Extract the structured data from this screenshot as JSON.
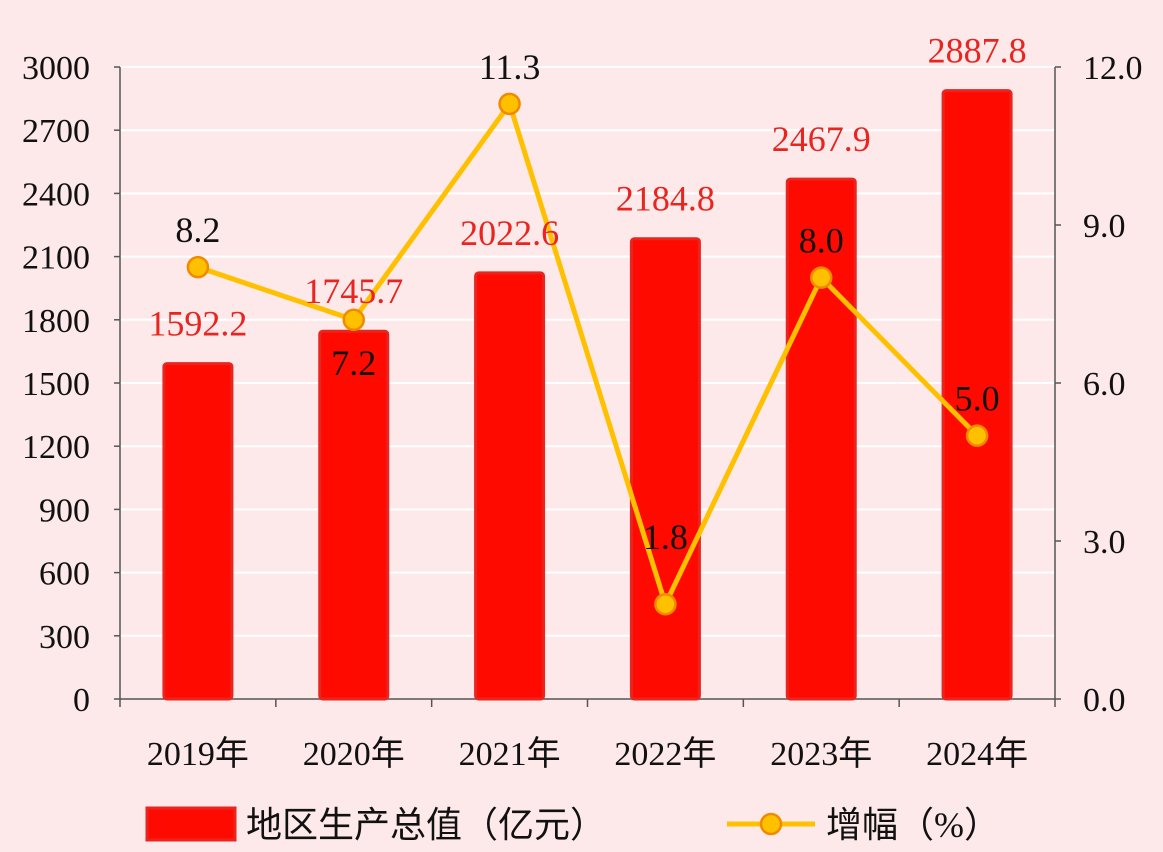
{
  "chart_data": {
    "type": "bar",
    "categories": [
      "2019年",
      "2020年",
      "2021年",
      "2022年",
      "2023年",
      "2024年"
    ],
    "series": [
      {
        "name": "地区生产总值（亿元）",
        "type": "bar",
        "axis": "left",
        "values": [
          1592.2,
          1745.7,
          2022.6,
          2184.8,
          2467.9,
          2887.8
        ],
        "labels": [
          "1592.2",
          "1745.7",
          "2022.6",
          "2184.8",
          "2467.9",
          "2887.8"
        ]
      },
      {
        "name": "增幅（%）",
        "type": "line",
        "axis": "right",
        "values": [
          8.2,
          7.2,
          11.3,
          1.8,
          8.0,
          5.0
        ],
        "labels": [
          "8.2",
          "7.2",
          "11.3",
          "1.8",
          "8.0",
          "5.0"
        ]
      }
    ],
    "y_left": {
      "min": 0,
      "max": 3000,
      "ticks": [
        "0",
        "300",
        "600",
        "900",
        "1200",
        "1500",
        "1800",
        "2100",
        "2400",
        "2700",
        "3000"
      ]
    },
    "y_right": {
      "min": 0,
      "max": 12,
      "ticks": [
        "0.0",
        "3.0",
        "6.0",
        "9.0",
        "12.0"
      ]
    },
    "title": "",
    "xlabel": "",
    "ylabel": "",
    "grid": true,
    "legend_position": "bottom",
    "colors": {
      "bar": "#ff0a00",
      "bar_edge": "#e8251f",
      "line": "#ffc000",
      "marker_edge": "#f08a00",
      "bar_label": "#e8251f",
      "background": "#fde9ea"
    }
  }
}
